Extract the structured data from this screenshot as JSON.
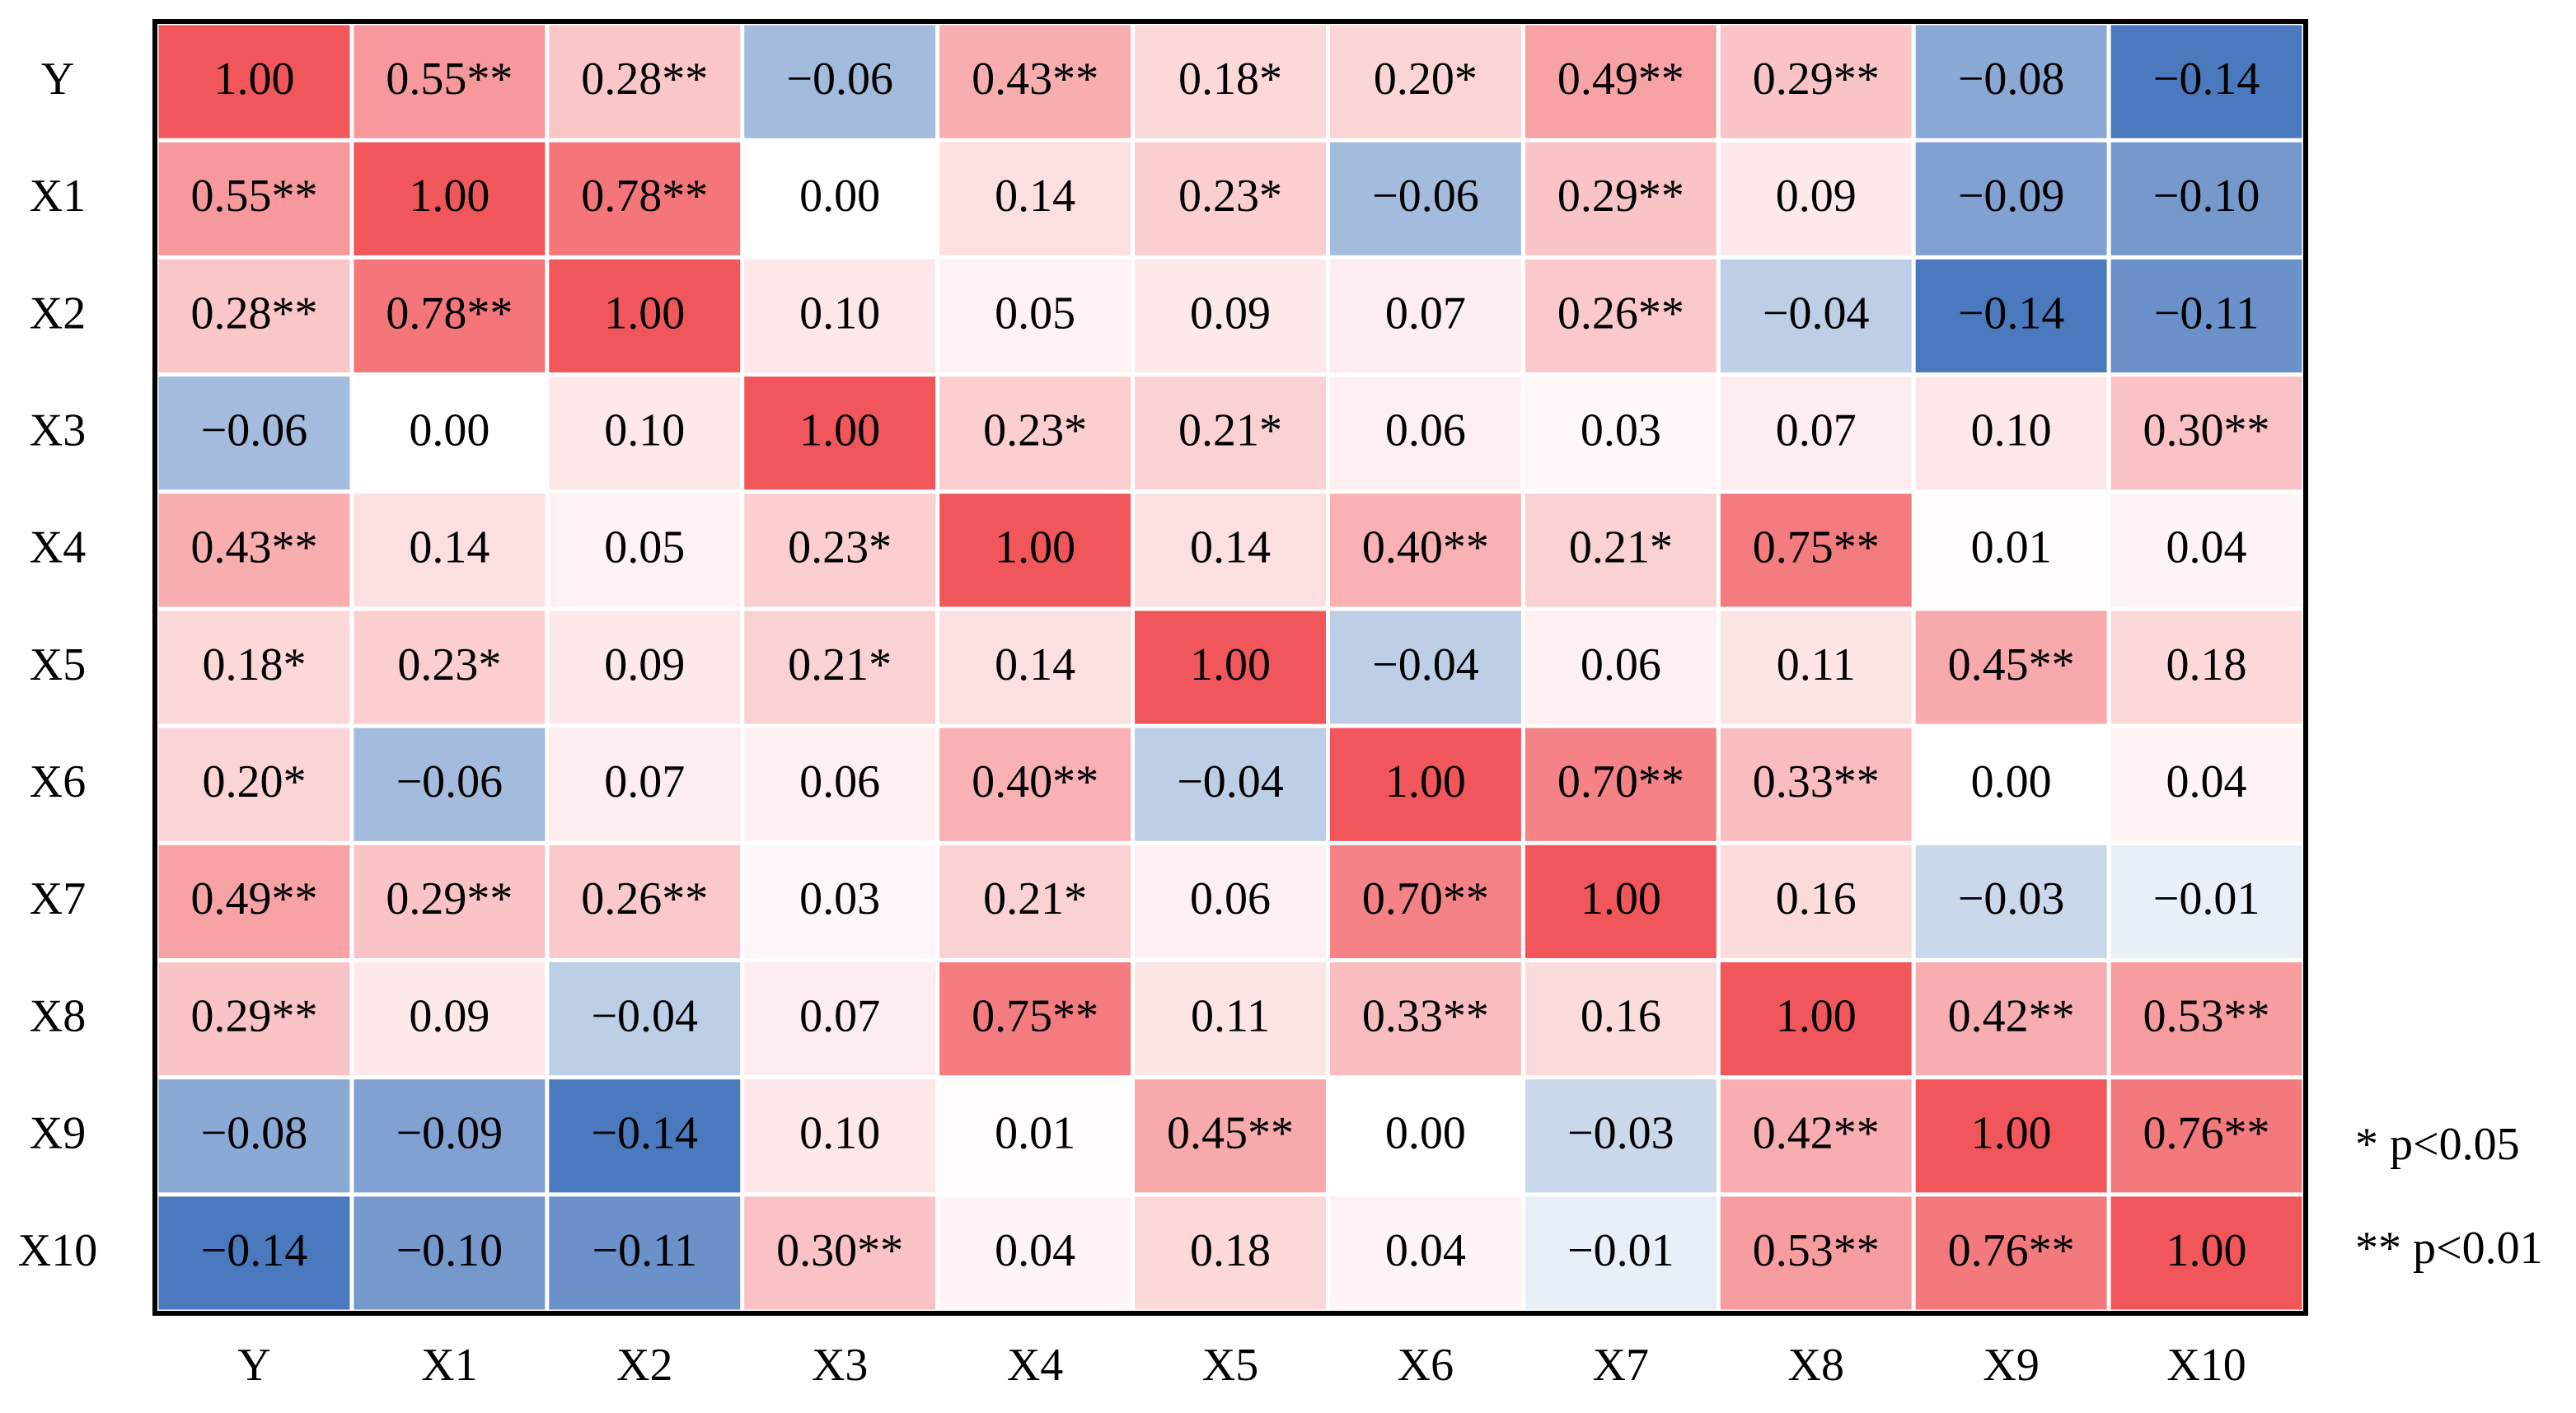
{
  "chart_data": {
    "type": "heatmap",
    "x_categories": [
      "Y",
      "X1",
      "X2",
      "X3",
      "X4",
      "X5",
      "X6",
      "X7",
      "X8",
      "X9",
      "X10"
    ],
    "y_categories": [
      "Y",
      "X1",
      "X2",
      "X3",
      "X4",
      "X5",
      "X6",
      "X7",
      "X8",
      "X9",
      "X10"
    ],
    "values": [
      [
        1.0,
        0.55,
        0.28,
        -0.06,
        0.43,
        0.18,
        0.2,
        0.49,
        0.29,
        -0.08,
        -0.14
      ],
      [
        0.55,
        1.0,
        0.78,
        0.0,
        0.14,
        0.23,
        -0.06,
        0.29,
        0.09,
        -0.09,
        -0.1
      ],
      [
        0.28,
        0.78,
        1.0,
        0.1,
        0.05,
        0.09,
        0.07,
        0.26,
        -0.04,
        -0.14,
        -0.11
      ],
      [
        -0.06,
        0.0,
        0.1,
        1.0,
        0.23,
        0.21,
        0.06,
        0.03,
        0.07,
        0.1,
        0.3
      ],
      [
        0.43,
        0.14,
        0.05,
        0.23,
        1.0,
        0.14,
        0.4,
        0.21,
        0.75,
        0.01,
        0.04
      ],
      [
        0.18,
        0.23,
        0.09,
        0.21,
        0.14,
        1.0,
        -0.04,
        0.06,
        0.11,
        0.45,
        0.18
      ],
      [
        0.2,
        -0.06,
        0.07,
        0.06,
        0.4,
        -0.04,
        1.0,
        0.7,
        0.33,
        0.0,
        0.04
      ],
      [
        0.49,
        0.29,
        0.26,
        0.03,
        0.21,
        0.06,
        0.7,
        1.0,
        0.16,
        -0.03,
        -0.01
      ],
      [
        0.29,
        0.09,
        -0.04,
        0.07,
        0.75,
        0.11,
        0.33,
        0.16,
        1.0,
        0.42,
        0.53
      ],
      [
        -0.08,
        -0.09,
        -0.14,
        0.1,
        0.01,
        0.45,
        0.0,
        -0.03,
        0.42,
        1.0,
        0.76
      ],
      [
        -0.14,
        -0.1,
        -0.11,
        0.3,
        0.04,
        0.18,
        0.04,
        -0.01,
        0.53,
        0.76,
        1.0
      ]
    ],
    "value_labels": [
      [
        "1.00",
        "0.55**",
        "0.28**",
        "−0.06",
        "0.43**",
        "0.18*",
        "0.20*",
        "0.49**",
        "0.29**",
        "−0.08",
        "−0.14"
      ],
      [
        "0.55**",
        "1.00",
        "0.78**",
        "0.00",
        "0.14",
        "0.23*",
        "−0.06",
        "0.29**",
        "0.09",
        "−0.09",
        "−0.10"
      ],
      [
        "0.28**",
        "0.78**",
        "1.00",
        "0.10",
        "0.05",
        "0.09",
        "0.07",
        "0.26**",
        "−0.04",
        "−0.14",
        "−0.11"
      ],
      [
        "−0.06",
        "0.00",
        "0.10",
        "1.00",
        "0.23*",
        "0.21*",
        "0.06",
        "0.03",
        "0.07",
        "0.10",
        "0.30**"
      ],
      [
        "0.43**",
        "0.14",
        "0.05",
        "0.23*",
        "1.00",
        "0.14",
        "0.40**",
        "0.21*",
        "0.75**",
        "0.01",
        "0.04"
      ],
      [
        "0.18*",
        "0.23*",
        "0.09",
        "0.21*",
        "0.14",
        "1.00",
        "−0.04",
        "0.06",
        "0.11",
        "0.45**",
        "0.18"
      ],
      [
        "0.20*",
        "−0.06",
        "0.07",
        "0.06",
        "0.40**",
        "−0.04",
        "1.00",
        "0.70**",
        "0.33**",
        "0.00",
        "0.04"
      ],
      [
        "0.49**",
        "0.29**",
        "0.26**",
        "0.03",
        "0.21*",
        "0.06",
        "0.70**",
        "1.00",
        "0.16",
        "−0.03",
        "−0.01"
      ],
      [
        "0.29**",
        "0.09",
        "−0.04",
        "0.07",
        "0.75**",
        "0.11",
        "0.33**",
        "0.16",
        "1.00",
        "0.42**",
        "0.53**"
      ],
      [
        "−0.08",
        "−0.09",
        "−0.14",
        "0.10",
        "0.01",
        "0.45**",
        "0.00",
        "−0.03",
        "0.42**",
        "1.00",
        "0.76**"
      ],
      [
        "−0.14",
        "−0.10",
        "−0.11",
        "0.30**",
        "0.04",
        "0.18",
        "0.04",
        "−0.01",
        "0.53**",
        "0.76**",
        "1.00"
      ]
    ],
    "colors": {
      "negative": "#4a79bd",
      "zero": "#ffffff",
      "positive": "#f1565b"
    },
    "notes": [
      "* p<0.05",
      "** p<0.01"
    ]
  }
}
